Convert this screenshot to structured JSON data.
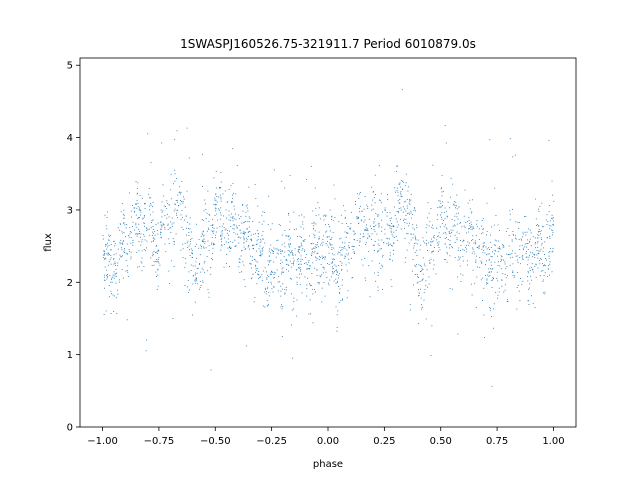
{
  "chart_data": {
    "type": "scatter",
    "title": "1SWASPJ160526.75-321911.7 Period 6010879.0s",
    "xlabel": "phase",
    "ylabel": "flux",
    "xlim": [
      -1.1,
      1.1
    ],
    "ylim": [
      0,
      5.1
    ],
    "xticks": [
      -1.0,
      -0.75,
      -0.5,
      -0.25,
      0.0,
      0.25,
      0.5,
      0.75,
      1.0
    ],
    "xtick_labels": [
      "−1.00",
      "−0.75",
      "−0.50",
      "−0.25",
      "0.00",
      "0.25",
      "0.50",
      "0.75",
      "1.00"
    ],
    "yticks": [
      0,
      1,
      2,
      3,
      4,
      5
    ],
    "ytick_labels": [
      "0",
      "1",
      "2",
      "3",
      "4",
      "5"
    ],
    "grid": false,
    "legend": "none",
    "point_color": "#1f77b4",
    "phase_range": [
      -1.0,
      1.0
    ],
    "flux_profile": {
      "description_phase": [
        0.0,
        0.03,
        0.06,
        0.1,
        0.15,
        0.2,
        0.25,
        0.3,
        0.35,
        0.4,
        0.45,
        0.5,
        0.55,
        0.6,
        0.65,
        0.7,
        0.75,
        0.8,
        0.85,
        0.9,
        0.95,
        1.0
      ],
      "median_flux": [
        2.45,
        2.2,
        2.3,
        2.6,
        2.75,
        2.7,
        2.55,
        2.95,
        3.1,
        2.1,
        2.5,
        2.9,
        2.75,
        2.6,
        2.55,
        2.3,
        2.2,
        2.4,
        2.3,
        2.35,
        2.4,
        2.6
      ]
    }
  }
}
